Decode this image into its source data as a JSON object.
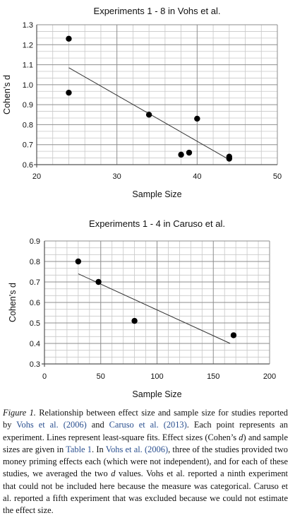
{
  "chart_data": [
    {
      "type": "scatter",
      "title": "Experiments 1 - 8 in Vohs et al.",
      "xlabel": "Sample Size",
      "ylabel": "Cohen's d",
      "xlim": [
        20,
        50
      ],
      "ylim": [
        0.6,
        1.3
      ],
      "xticks": [
        20,
        30,
        40,
        50
      ],
      "yticks": [
        0.6,
        0.7,
        0.8,
        0.9,
        1.0,
        1.1,
        1.2,
        1.3
      ],
      "ytick_labels": [
        "0.6",
        "0.7",
        "0.8",
        "0.9",
        "1.0",
        "1.1",
        "1.2",
        "1.3"
      ],
      "grid": true,
      "points": [
        {
          "x": 24,
          "y": 1.23
        },
        {
          "x": 24,
          "y": 0.96
        },
        {
          "x": 34,
          "y": 0.85
        },
        {
          "x": 38,
          "y": 0.65
        },
        {
          "x": 39,
          "y": 0.66
        },
        {
          "x": 40,
          "y": 0.83
        },
        {
          "x": 44,
          "y": 0.64
        },
        {
          "x": 44,
          "y": 0.63
        }
      ],
      "fit_line": {
        "x": [
          24,
          44
        ],
        "y": [
          1.085,
          0.625
        ]
      }
    },
    {
      "type": "scatter",
      "title": "Experiments 1 - 4 in Caruso et al.",
      "xlabel": "Sample Size",
      "ylabel": "Cohen's d",
      "xlim": [
        0,
        200
      ],
      "ylim": [
        0.3,
        0.9
      ],
      "xticks": [
        0,
        50,
        100,
        150,
        200
      ],
      "yticks": [
        0.3,
        0.4,
        0.5,
        0.6,
        0.7,
        0.8,
        0.9
      ],
      "ytick_labels": [
        "0.3",
        "0.4",
        "0.5",
        "0.6",
        "0.7",
        "0.8",
        "0.9"
      ],
      "grid": true,
      "points": [
        {
          "x": 30,
          "y": 0.8
        },
        {
          "x": 48,
          "y": 0.7
        },
        {
          "x": 80,
          "y": 0.51
        },
        {
          "x": 168,
          "y": 0.44
        }
      ],
      "fit_line": {
        "x": [
          30,
          165
        ],
        "y": [
          0.74,
          0.4
        ]
      }
    }
  ],
  "caption": {
    "label": "Figure 1.",
    "s1": " Relationship between effect size and sample size for studies reported by ",
    "ref1": "Vohs et al. (2006)",
    "s2": " and ",
    "ref2": "Caruso et al. (2013)",
    "s3": ". Each point represents an experiment. Lines represent least-square fits. Effect sizes (Cohen’s ",
    "d1": "d",
    "s4": ") and sample sizes are given in ",
    "ref3": "Table 1",
    "s5": ". In ",
    "ref4": "Vohs et al. (2006)",
    "s6": ", three of the studies provided two money priming effects each (which were not independent), and for each of these studies, we averaged the two ",
    "d2": "d",
    "s7": " values. Vohs et al. reported a ninth experiment that could not be included here because the measure was categorical. Caruso et al. reported a fifth experiment that was excluded because we could not estimate the effect size."
  }
}
